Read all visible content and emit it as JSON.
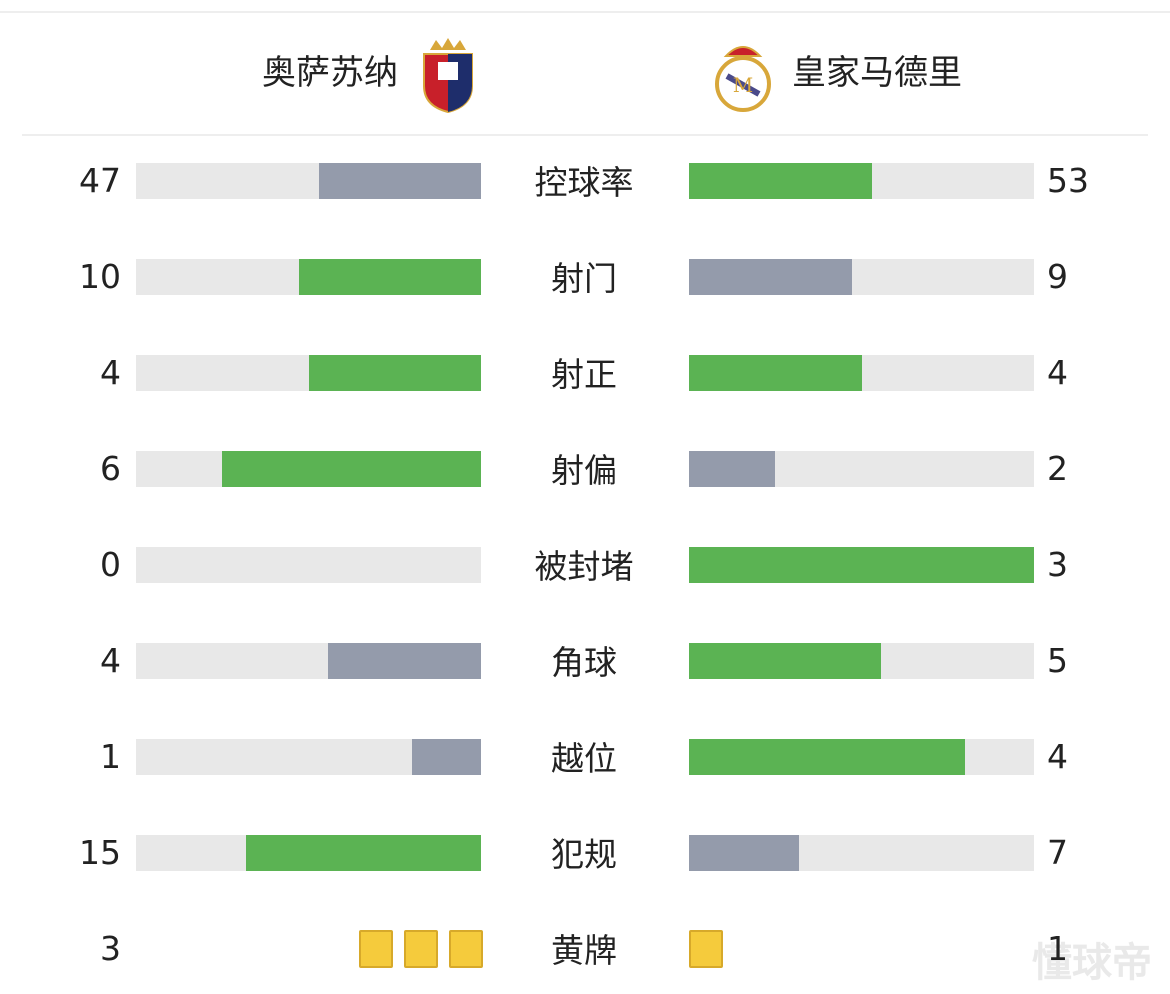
{
  "header": {
    "home": "奥萨苏纳",
    "away": "皇家马德里"
  },
  "stats": [
    {
      "label": "控球率",
      "home": 47,
      "away": 53
    },
    {
      "label": "射门",
      "home": 10,
      "away": 9
    },
    {
      "label": "射正",
      "home": 4,
      "away": 4
    },
    {
      "label": "射偏",
      "home": 6,
      "away": 2
    },
    {
      "label": "被封堵",
      "home": 0,
      "away": 3
    },
    {
      "label": "角球",
      "home": 4,
      "away": 5
    },
    {
      "label": "越位",
      "home": 1,
      "away": 4
    },
    {
      "label": "犯规",
      "home": 15,
      "away": 7
    },
    {
      "label": "黄牌",
      "home": 3,
      "away": 1,
      "style": "cards"
    }
  ],
  "colors": {
    "lead": "#5bb353",
    "trail": "#949bab"
  },
  "watermark": "懂球帝"
}
